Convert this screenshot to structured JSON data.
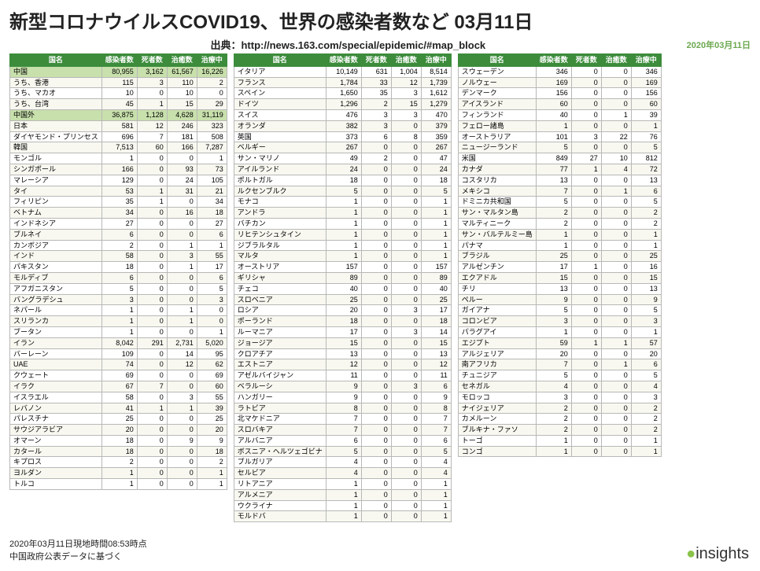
{
  "title": "新型コロナウイルスCOVID19、世界の感染者数など 03月11日",
  "source": "出典：http://news.163.com/special/epidemic/#map_block",
  "report_date": "2020年03月11日",
  "footer_line1": "2020年03月11日現地時間08:53時点",
  "footer_line2": "中国政府公表データに基づく",
  "logo_text": "insights",
  "headers": [
    "国名",
    "感染者数",
    "死者数",
    "治癒数",
    "治療中"
  ],
  "style": {
    "header_bg": "#3c8c3c",
    "header_fg": "#ffffff",
    "highlight_bg": "#c8e0ac",
    "border_color": "#b8b8b8",
    "title_fontsize": 24,
    "table_fontsize": 9
  },
  "columns": [
    {
      "rows": [
        {
          "n": "中国",
          "c": 80955,
          "d": 3162,
          "r": 61567,
          "a": 16226,
          "hl": true
        },
        {
          "n": "うち、香港",
          "c": 115,
          "d": 3,
          "r": 110,
          "a": 2
        },
        {
          "n": "うち、マカオ",
          "c": 10,
          "d": 0,
          "r": 10,
          "a": 0
        },
        {
          "n": "うち、台湾",
          "c": 45,
          "d": 1,
          "r": 15,
          "a": 29
        },
        {
          "n": "中国外",
          "c": 36875,
          "d": 1128,
          "r": 4628,
          "a": 31119,
          "hl": true
        },
        {
          "n": "日本",
          "c": 581,
          "d": 12,
          "r": 246,
          "a": 323
        },
        {
          "n": "ダイヤモンド・プリンセス",
          "c": 696,
          "d": 7,
          "r": 181,
          "a": 508
        },
        {
          "n": "韓国",
          "c": 7513,
          "d": 60,
          "r": 166,
          "a": 7287
        },
        {
          "n": "モンゴル",
          "c": 1,
          "d": 0,
          "r": 0,
          "a": 1
        },
        {
          "n": "シンガポール",
          "c": 166,
          "d": 0,
          "r": 93,
          "a": 73
        },
        {
          "n": "マレーシア",
          "c": 129,
          "d": 0,
          "r": 24,
          "a": 105
        },
        {
          "n": "タイ",
          "c": 53,
          "d": 1,
          "r": 31,
          "a": 21
        },
        {
          "n": "フィリピン",
          "c": 35,
          "d": 1,
          "r": 0,
          "a": 34
        },
        {
          "n": "ベトナム",
          "c": 34,
          "d": 0,
          "r": 16,
          "a": 18
        },
        {
          "n": "インドネシア",
          "c": 27,
          "d": 0,
          "r": 0,
          "a": 27
        },
        {
          "n": "ブルネイ",
          "c": 6,
          "d": 0,
          "r": 0,
          "a": 6
        },
        {
          "n": "カンボジア",
          "c": 2,
          "d": 0,
          "r": 1,
          "a": 1
        },
        {
          "n": "インド",
          "c": 58,
          "d": 0,
          "r": 3,
          "a": 55
        },
        {
          "n": "パキスタン",
          "c": 18,
          "d": 0,
          "r": 1,
          "a": 17
        },
        {
          "n": "モルディブ",
          "c": 6,
          "d": 0,
          "r": 0,
          "a": 6
        },
        {
          "n": "アフガニスタン",
          "c": 5,
          "d": 0,
          "r": 0,
          "a": 5
        },
        {
          "n": "バングラデシュ",
          "c": 3,
          "d": 0,
          "r": 0,
          "a": 3
        },
        {
          "n": "ネパール",
          "c": 1,
          "d": 0,
          "r": 1,
          "a": 0
        },
        {
          "n": "スリランカ",
          "c": 1,
          "d": 0,
          "r": 1,
          "a": 0
        },
        {
          "n": "ブータン",
          "c": 1,
          "d": 0,
          "r": 0,
          "a": 1
        },
        {
          "n": "イラン",
          "c": 8042,
          "d": 291,
          "r": 2731,
          "a": 5020
        },
        {
          "n": "バーレーン",
          "c": 109,
          "d": 0,
          "r": 14,
          "a": 95
        },
        {
          "n": "UAE",
          "c": 74,
          "d": 0,
          "r": 12,
          "a": 62
        },
        {
          "n": "クウェート",
          "c": 69,
          "d": 0,
          "r": 0,
          "a": 69
        },
        {
          "n": "イラク",
          "c": 67,
          "d": 7,
          "r": 0,
          "a": 60
        },
        {
          "n": "イスラエル",
          "c": 58,
          "d": 0,
          "r": 3,
          "a": 55
        },
        {
          "n": "レバノン",
          "c": 41,
          "d": 1,
          "r": 1,
          "a": 39
        },
        {
          "n": "パレスチナ",
          "c": 25,
          "d": 0,
          "r": 0,
          "a": 25
        },
        {
          "n": "サウジアラビア",
          "c": 20,
          "d": 0,
          "r": 0,
          "a": 20
        },
        {
          "n": "オマーン",
          "c": 18,
          "d": 0,
          "r": 9,
          "a": 9
        },
        {
          "n": "カタール",
          "c": 18,
          "d": 0,
          "r": 0,
          "a": 18
        },
        {
          "n": "キプロス",
          "c": 2,
          "d": 0,
          "r": 0,
          "a": 2
        },
        {
          "n": "ヨルダン",
          "c": 1,
          "d": 0,
          "r": 0,
          "a": 1
        },
        {
          "n": "トルコ",
          "c": 1,
          "d": 0,
          "r": 0,
          "a": 1
        }
      ]
    },
    {
      "rows": [
        {
          "n": "イタリア",
          "c": 10149,
          "d": 631,
          "r": 1004,
          "a": 8514
        },
        {
          "n": "フランス",
          "c": 1784,
          "d": 33,
          "r": 12,
          "a": 1739
        },
        {
          "n": "スペイン",
          "c": 1650,
          "d": 35,
          "r": 3,
          "a": 1612
        },
        {
          "n": "ドイツ",
          "c": 1296,
          "d": 2,
          "r": 15,
          "a": 1279
        },
        {
          "n": "スイス",
          "c": 476,
          "d": 3,
          "r": 3,
          "a": 470
        },
        {
          "n": "オランダ",
          "c": 382,
          "d": 3,
          "r": 0,
          "a": 379
        },
        {
          "n": "英国",
          "c": 373,
          "d": 6,
          "r": 8,
          "a": 359
        },
        {
          "n": "ベルギー",
          "c": 267,
          "d": 0,
          "r": 0,
          "a": 267
        },
        {
          "n": "サン・マリノ",
          "c": 49,
          "d": 2,
          "r": 0,
          "a": 47
        },
        {
          "n": "アイルランド",
          "c": 24,
          "d": 0,
          "r": 0,
          "a": 24
        },
        {
          "n": "ポルトガル",
          "c": 18,
          "d": 0,
          "r": 0,
          "a": 18
        },
        {
          "n": "ルクセンブルク",
          "c": 5,
          "d": 0,
          "r": 0,
          "a": 5
        },
        {
          "n": "モナコ",
          "c": 1,
          "d": 0,
          "r": 0,
          "a": 1
        },
        {
          "n": "アンドラ",
          "c": 1,
          "d": 0,
          "r": 0,
          "a": 1
        },
        {
          "n": "バチカン",
          "c": 1,
          "d": 0,
          "r": 0,
          "a": 1
        },
        {
          "n": "リヒテンシュタイン",
          "c": 1,
          "d": 0,
          "r": 0,
          "a": 1
        },
        {
          "n": "ジブラルタル",
          "c": 1,
          "d": 0,
          "r": 0,
          "a": 1
        },
        {
          "n": "マルタ",
          "c": 1,
          "d": 0,
          "r": 0,
          "a": 1
        },
        {
          "n": "オーストリア",
          "c": 157,
          "d": 0,
          "r": 0,
          "a": 157
        },
        {
          "n": "ギリシャ",
          "c": 89,
          "d": 0,
          "r": 0,
          "a": 89
        },
        {
          "n": "チェコ",
          "c": 40,
          "d": 0,
          "r": 0,
          "a": 40
        },
        {
          "n": "スロベニア",
          "c": 25,
          "d": 0,
          "r": 0,
          "a": 25
        },
        {
          "n": "ロシア",
          "c": 20,
          "d": 0,
          "r": 3,
          "a": 17
        },
        {
          "n": "ポーランド",
          "c": 18,
          "d": 0,
          "r": 0,
          "a": 18
        },
        {
          "n": "ルーマニア",
          "c": 17,
          "d": 0,
          "r": 3,
          "a": 14
        },
        {
          "n": "ジョージア",
          "c": 15,
          "d": 0,
          "r": 0,
          "a": 15
        },
        {
          "n": "クロアチア",
          "c": 13,
          "d": 0,
          "r": 0,
          "a": 13
        },
        {
          "n": "エストニア",
          "c": 12,
          "d": 0,
          "r": 0,
          "a": 12
        },
        {
          "n": "アゼルバイジャン",
          "c": 11,
          "d": 0,
          "r": 0,
          "a": 11
        },
        {
          "n": "ベラルーシ",
          "c": 9,
          "d": 0,
          "r": 3,
          "a": 6
        },
        {
          "n": "ハンガリー",
          "c": 9,
          "d": 0,
          "r": 0,
          "a": 9
        },
        {
          "n": "ラトビア",
          "c": 8,
          "d": 0,
          "r": 0,
          "a": 8
        },
        {
          "n": "北マケドニア",
          "c": 7,
          "d": 0,
          "r": 0,
          "a": 7
        },
        {
          "n": "スロバキア",
          "c": 7,
          "d": 0,
          "r": 0,
          "a": 7
        },
        {
          "n": "アルバニア",
          "c": 6,
          "d": 0,
          "r": 0,
          "a": 6
        },
        {
          "n": "ボスニア・ヘルツェゴビナ",
          "c": 5,
          "d": 0,
          "r": 0,
          "a": 5
        },
        {
          "n": "ブルガリア",
          "c": 4,
          "d": 0,
          "r": 0,
          "a": 4
        },
        {
          "n": "セルビア",
          "c": 4,
          "d": 0,
          "r": 0,
          "a": 4
        },
        {
          "n": "リトアニア",
          "c": 1,
          "d": 0,
          "r": 0,
          "a": 1
        },
        {
          "n": "アルメニア",
          "c": 1,
          "d": 0,
          "r": 0,
          "a": 1
        },
        {
          "n": "ウクライナ",
          "c": 1,
          "d": 0,
          "r": 0,
          "a": 1
        },
        {
          "n": "モルドバ",
          "c": 1,
          "d": 0,
          "r": 0,
          "a": 1
        }
      ]
    },
    {
      "rows": [
        {
          "n": "スウェーデン",
          "c": 346,
          "d": 0,
          "r": 0,
          "a": 346
        },
        {
          "n": "ノルウェー",
          "c": 169,
          "d": 0,
          "r": 0,
          "a": 169
        },
        {
          "n": "デンマーク",
          "c": 156,
          "d": 0,
          "r": 0,
          "a": 156
        },
        {
          "n": "アイスランド",
          "c": 60,
          "d": 0,
          "r": 0,
          "a": 60
        },
        {
          "n": "フィンランド",
          "c": 40,
          "d": 0,
          "r": 1,
          "a": 39
        },
        {
          "n": "フェロー諸島",
          "c": 1,
          "d": 0,
          "r": 0,
          "a": 1
        },
        {
          "n": "オーストラリア",
          "c": 101,
          "d": 3,
          "r": 22,
          "a": 76
        },
        {
          "n": "ニュージーランド",
          "c": 5,
          "d": 0,
          "r": 0,
          "a": 5
        },
        {
          "n": "米国",
          "c": 849,
          "d": 27,
          "r": 10,
          "a": 812
        },
        {
          "n": "カナダ",
          "c": 77,
          "d": 1,
          "r": 4,
          "a": 72
        },
        {
          "n": "コスタリカ",
          "c": 13,
          "d": 0,
          "r": 0,
          "a": 13
        },
        {
          "n": "メキシコ",
          "c": 7,
          "d": 0,
          "r": 1,
          "a": 6
        },
        {
          "n": "ドミニカ共和国",
          "c": 5,
          "d": 0,
          "r": 0,
          "a": 5
        },
        {
          "n": "サン・マルタン島",
          "c": 2,
          "d": 0,
          "r": 0,
          "a": 2
        },
        {
          "n": "マルティニーク",
          "c": 2,
          "d": 0,
          "r": 0,
          "a": 2
        },
        {
          "n": "サン・バルテルミー島",
          "c": 1,
          "d": 0,
          "r": 0,
          "a": 1
        },
        {
          "n": "パナマ",
          "c": 1,
          "d": 0,
          "r": 0,
          "a": 1
        },
        {
          "n": "ブラジル",
          "c": 25,
          "d": 0,
          "r": 0,
          "a": 25
        },
        {
          "n": "アルゼンチン",
          "c": 17,
          "d": 1,
          "r": 0,
          "a": 16
        },
        {
          "n": "エクアドル",
          "c": 15,
          "d": 0,
          "r": 0,
          "a": 15
        },
        {
          "n": "チリ",
          "c": 13,
          "d": 0,
          "r": 0,
          "a": 13
        },
        {
          "n": "ペルー",
          "c": 9,
          "d": 0,
          "r": 0,
          "a": 9
        },
        {
          "n": "ガイアナ",
          "c": 5,
          "d": 0,
          "r": 0,
          "a": 5
        },
        {
          "n": "コロンビア",
          "c": 3,
          "d": 0,
          "r": 0,
          "a": 3
        },
        {
          "n": "パラグアイ",
          "c": 1,
          "d": 0,
          "r": 0,
          "a": 1
        },
        {
          "n": "エジプト",
          "c": 59,
          "d": 1,
          "r": 1,
          "a": 57
        },
        {
          "n": "アルジェリア",
          "c": 20,
          "d": 0,
          "r": 0,
          "a": 20
        },
        {
          "n": "南アフリカ",
          "c": 7,
          "d": 0,
          "r": 1,
          "a": 6
        },
        {
          "n": "チュニジア",
          "c": 5,
          "d": 0,
          "r": 0,
          "a": 5
        },
        {
          "n": "セネガル",
          "c": 4,
          "d": 0,
          "r": 0,
          "a": 4
        },
        {
          "n": "モロッコ",
          "c": 3,
          "d": 0,
          "r": 0,
          "a": 3
        },
        {
          "n": "ナイジェリア",
          "c": 2,
          "d": 0,
          "r": 0,
          "a": 2
        },
        {
          "n": "カメルーン",
          "c": 2,
          "d": 0,
          "r": 0,
          "a": 2
        },
        {
          "n": "ブルキナ・ファソ",
          "c": 2,
          "d": 0,
          "r": 0,
          "a": 2
        },
        {
          "n": "トーゴ",
          "c": 1,
          "d": 0,
          "r": 0,
          "a": 1
        },
        {
          "n": "コンゴ",
          "c": 1,
          "d": 0,
          "r": 0,
          "a": 1
        }
      ]
    }
  ]
}
